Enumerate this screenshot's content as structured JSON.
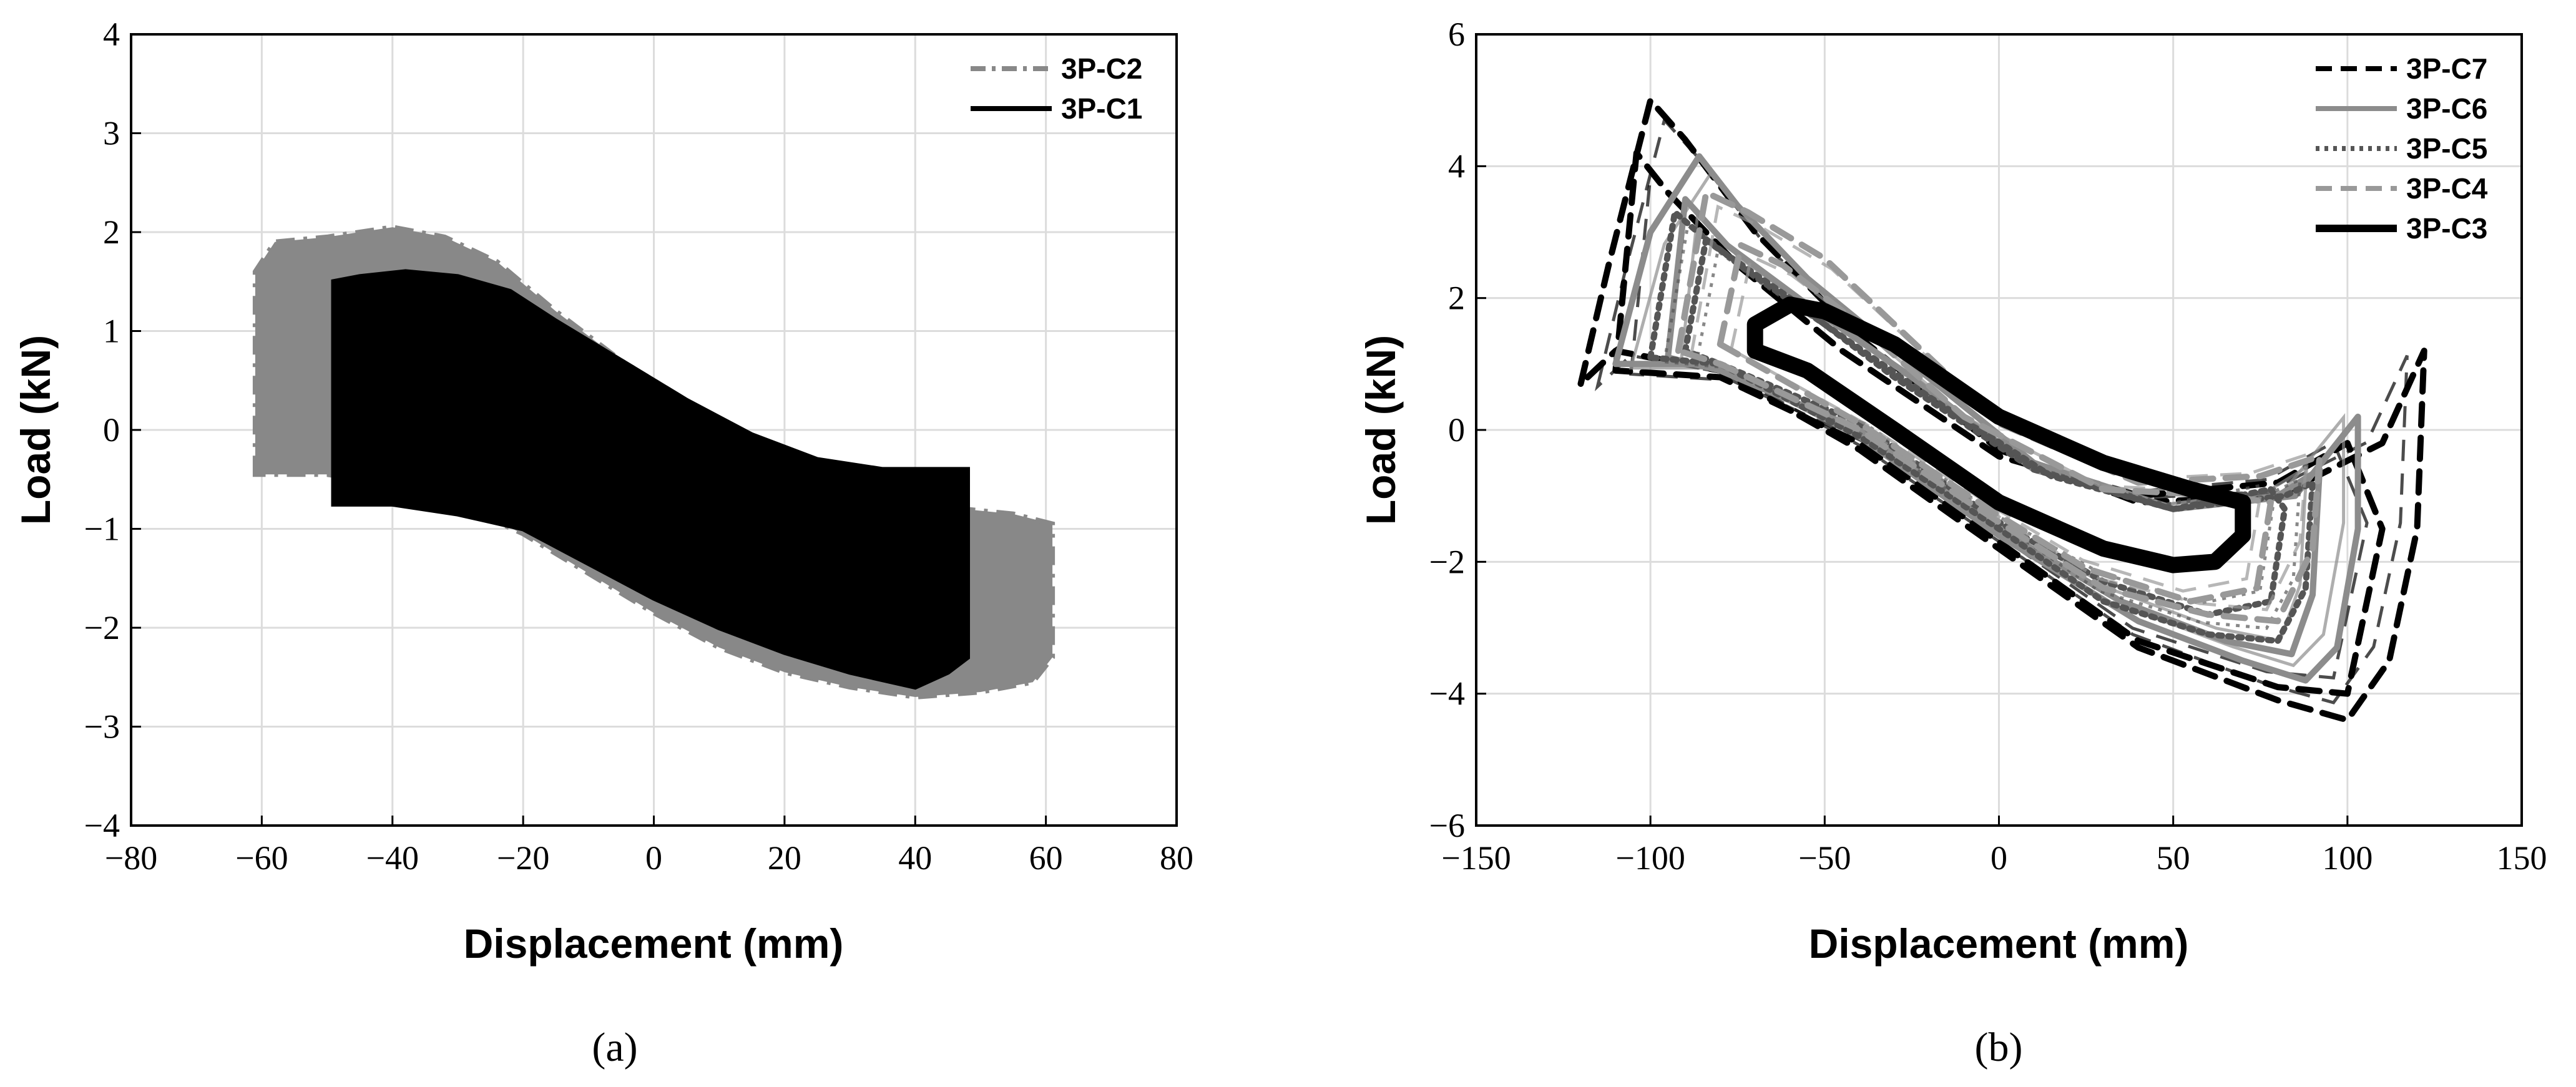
{
  "chart_data": [
    {
      "type": "line",
      "caption": "(a)",
      "xlabel": "Displacement (mm)",
      "ylabel": "Load (kN)",
      "xlim": [
        -80,
        80
      ],
      "ylim": [
        -4,
        4
      ],
      "xticks": [
        -80,
        -60,
        -40,
        -20,
        0,
        20,
        40,
        60,
        80
      ],
      "yticks": [
        -4,
        -3,
        -2,
        -1,
        0,
        1,
        2,
        3,
        4
      ],
      "xtick_labels": [
        "−80",
        "−60",
        "−40",
        "−20",
        "0",
        "20",
        "40",
        "60",
        "80"
      ],
      "ytick_labels": [
        "−4",
        "−3",
        "−2",
        "−1",
        "0",
        "1",
        "2",
        "3",
        "4"
      ],
      "grid": true,
      "legend_position": "top-right",
      "series": [
        {
          "name": "3P-C2",
          "color": "#888888",
          "dash": "dashdot",
          "fill": true,
          "points": [
            [
              -61,
              -0.45
            ],
            [
              -61,
              1.6
            ],
            [
              -58,
              1.9
            ],
            [
              -50,
              1.95
            ],
            [
              -40,
              2.05
            ],
            [
              -32,
              1.95
            ],
            [
              -24,
              1.7
            ],
            [
              -15,
              1.2
            ],
            [
              -5,
              0.7
            ],
            [
              5,
              0.3
            ],
            [
              15,
              -0.1
            ],
            [
              25,
              -0.5
            ],
            [
              40,
              -0.75
            ],
            [
              55,
              -0.85
            ],
            [
              61,
              -0.95
            ],
            [
              61,
              -2.3
            ],
            [
              58,
              -2.55
            ],
            [
              50,
              -2.65
            ],
            [
              40,
              -2.7
            ],
            [
              30,
              -2.6
            ],
            [
              20,
              -2.45
            ],
            [
              10,
              -2.2
            ],
            [
              0,
              -1.85
            ],
            [
              -10,
              -1.45
            ],
            [
              -20,
              -1.05
            ],
            [
              -30,
              -0.75
            ],
            [
              -40,
              -0.55
            ],
            [
              -50,
              -0.45
            ],
            [
              -61,
              -0.45
            ]
          ]
        },
        {
          "name": "3P-C1",
          "color": "#000000",
          "dash": "solid",
          "fill": true,
          "points": [
            [
              -49,
              -0.75
            ],
            [
              -49,
              1.5
            ],
            [
              -45,
              1.55
            ],
            [
              -38,
              1.6
            ],
            [
              -30,
              1.55
            ],
            [
              -22,
              1.4
            ],
            [
              -15,
              1.1
            ],
            [
              -5,
              0.7
            ],
            [
              5,
              0.3
            ],
            [
              15,
              -0.05
            ],
            [
              25,
              -0.3
            ],
            [
              35,
              -0.4
            ],
            [
              48,
              -0.4
            ],
            [
              48,
              -2.3
            ],
            [
              45,
              -2.45
            ],
            [
              40,
              -2.6
            ],
            [
              30,
              -2.45
            ],
            [
              20,
              -2.25
            ],
            [
              10,
              -2.0
            ],
            [
              0,
              -1.7
            ],
            [
              -10,
              -1.35
            ],
            [
              -20,
              -1.0
            ],
            [
              -30,
              -0.85
            ],
            [
              -40,
              -0.75
            ],
            [
              -49,
              -0.75
            ]
          ]
        }
      ]
    },
    {
      "type": "line",
      "caption": "(b)",
      "xlabel": "Displacement (mm)",
      "ylabel": "Load (kN)",
      "xlim": [
        -150,
        150
      ],
      "ylim": [
        -6,
        6
      ],
      "xticks": [
        -150,
        -100,
        -50,
        0,
        50,
        100,
        150
      ],
      "yticks": [
        -6,
        -4,
        -2,
        0,
        2,
        4,
        6
      ],
      "xtick_labels": [
        "−150",
        "−100",
        "−50",
        "0",
        "50",
        "100",
        "150"
      ],
      "ytick_labels": [
        "−6",
        "−4",
        "−2",
        "0",
        "2",
        "4",
        "6"
      ],
      "grid": true,
      "legend_position": "top-right",
      "series": [
        {
          "name": "3P-C7",
          "color": "#000000",
          "dash": "dash",
          "width": 10,
          "loops": [
            [
              [
                -120,
                0.7
              ],
              [
                -112,
                2.5
              ],
              [
                -100,
                5.0
              ],
              [
                -90,
                4.4
              ],
              [
                -70,
                3.0
              ],
              [
                -40,
                1.4
              ],
              [
                0,
                -0.3
              ],
              [
                40,
                -1.1
              ],
              [
                80,
                -1.0
              ],
              [
                110,
                -0.2
              ],
              [
                122,
                1.2
              ],
              [
                120,
                -1.5
              ],
              [
                112,
                -3.5
              ],
              [
                100,
                -4.4
              ],
              [
                80,
                -4.1
              ],
              [
                40,
                -3.3
              ],
              [
                0,
                -1.8
              ],
              [
                -40,
                -0.3
              ],
              [
                -80,
                0.9
              ],
              [
                -110,
                1.2
              ],
              [
                -120,
                0.7
              ]
            ],
            [
              [
                -110,
                0.9
              ],
              [
                -104,
                4.2
              ],
              [
                -95,
                3.6
              ],
              [
                -75,
                2.5
              ],
              [
                -45,
                1.2
              ],
              [
                0,
                -0.4
              ],
              [
                40,
                -1.0
              ],
              [
                80,
                -0.8
              ],
              [
                100,
                -0.2
              ],
              [
                110,
                -1.5
              ],
              [
                100,
                -4.0
              ],
              [
                80,
                -3.9
              ],
              [
                40,
                -3.2
              ],
              [
                0,
                -1.7
              ],
              [
                -40,
                -0.2
              ],
              [
                -80,
                0.8
              ],
              [
                -110,
                0.9
              ]
            ]
          ]
        },
        {
          "name": "3P-C6",
          "color": "#8c8c8c",
          "dash": "solid",
          "width": 10,
          "loops": [
            [
              [
                -110,
                1.0
              ],
              [
                -100,
                3.0
              ],
              [
                -86,
                4.15
              ],
              [
                -75,
                3.4
              ],
              [
                -55,
                2.3
              ],
              [
                -25,
                1.0
              ],
              [
                10,
                -0.5
              ],
              [
                50,
                -1.2
              ],
              [
                85,
                -1.0
              ],
              [
                103,
                0.2
              ],
              [
                103,
                -1.5
              ],
              [
                97,
                -3.3
              ],
              [
                88,
                -3.8
              ],
              [
                70,
                -3.5
              ],
              [
                40,
                -2.9
              ],
              [
                0,
                -1.6
              ],
              [
                -40,
                -0.1
              ],
              [
                -80,
                1.0
              ],
              [
                -110,
                1.0
              ]
            ],
            [
              [
                -95,
                1.1
              ],
              [
                -90,
                3.5
              ],
              [
                -78,
                2.8
              ],
              [
                -55,
                1.9
              ],
              [
                -25,
                0.8
              ],
              [
                10,
                -0.6
              ],
              [
                50,
                -1.2
              ],
              [
                80,
                -1.0
              ],
              [
                92,
                -0.6
              ],
              [
                90,
                -2.5
              ],
              [
                84,
                -3.4
              ],
              [
                65,
                -3.2
              ],
              [
                35,
                -2.6
              ],
              [
                0,
                -1.5
              ],
              [
                -40,
                0.0
              ],
              [
                -80,
                0.9
              ],
              [
                -95,
                1.1
              ]
            ]
          ]
        },
        {
          "name": "3P-C5",
          "color": "#555555",
          "dash": "dot",
          "width": 10,
          "loops": [
            [
              [
                -100,
                1.1
              ],
              [
                -93,
                3.3
              ],
              [
                -82,
                2.8
              ],
              [
                -60,
                2.0
              ],
              [
                -30,
                0.8
              ],
              [
                10,
                -0.6
              ],
              [
                50,
                -1.2
              ],
              [
                82,
                -1.0
              ],
              [
                90,
                -0.8
              ],
              [
                88,
                -2.4
              ],
              [
                80,
                -3.2
              ],
              [
                60,
                -3.1
              ],
              [
                30,
                -2.6
              ],
              [
                0,
                -1.5
              ],
              [
                -40,
                -0.1
              ],
              [
                -80,
                1.0
              ],
              [
                -100,
                1.1
              ]
            ],
            [
              [
                -90,
                1.2
              ],
              [
                -84,
                2.9
              ],
              [
                -72,
                2.4
              ],
              [
                -50,
                1.6
              ],
              [
                -20,
                0.5
              ],
              [
                15,
                -0.7
              ],
              [
                50,
                -1.2
              ],
              [
                78,
                -0.9
              ],
              [
                82,
                -1.2
              ],
              [
                78,
                -2.6
              ],
              [
                60,
                -2.8
              ],
              [
                30,
                -2.3
              ],
              [
                0,
                -1.4
              ],
              [
                -40,
                0.1
              ],
              [
                -80,
                1.0
              ],
              [
                -90,
                1.2
              ]
            ]
          ]
        },
        {
          "name": "3P-C4",
          "color": "#999999",
          "dash": "dash",
          "width": 10,
          "loops": [
            [
              [
                -92,
                1.2
              ],
              [
                -84,
                3.6
              ],
              [
                -72,
                3.3
              ],
              [
                -50,
                2.6
              ],
              [
                -30,
                1.6
              ],
              [
                0,
                0.1
              ],
              [
                40,
                -0.8
              ],
              [
                75,
                -0.7
              ],
              [
                92,
                -0.4
              ],
              [
                90,
                -1.8
              ],
              [
                80,
                -2.9
              ],
              [
                60,
                -2.8
              ],
              [
                30,
                -2.4
              ],
              [
                0,
                -1.4
              ],
              [
                -40,
                0.0
              ],
              [
                -80,
                1.0
              ],
              [
                -92,
                1.2
              ]
            ],
            [
              [
                -80,
                1.3
              ],
              [
                -74,
                2.8
              ],
              [
                -62,
                2.5
              ],
              [
                -40,
                1.6
              ],
              [
                -10,
                0.2
              ],
              [
                30,
                -0.9
              ],
              [
                65,
                -1.0
              ],
              [
                78,
                -1.1
              ],
              [
                74,
                -2.4
              ],
              [
                55,
                -2.6
              ],
              [
                25,
                -2.1
              ],
              [
                0,
                -1.3
              ],
              [
                -40,
                0.1
              ],
              [
                -80,
                1.3
              ]
            ]
          ]
        },
        {
          "name": "3P-C3",
          "color": "#000000",
          "dash": "solid",
          "width": 26,
          "loops": [
            [
              [
                -70,
                1.6
              ],
              [
                -60,
                1.9
              ],
              [
                -50,
                1.8
              ],
              [
                -30,
                1.3
              ],
              [
                0,
                0.2
              ],
              [
                30,
                -0.5
              ],
              [
                55,
                -0.9
              ],
              [
                70,
                -1.1
              ],
              [
                70,
                -1.6
              ],
              [
                62,
                -2.0
              ],
              [
                50,
                -2.05
              ],
              [
                30,
                -1.8
              ],
              [
                0,
                -1.1
              ],
              [
                -30,
                0.0
              ],
              [
                -55,
                0.9
              ],
              [
                -70,
                1.2
              ],
              [
                -70,
                1.6
              ]
            ]
          ]
        }
      ]
    }
  ]
}
